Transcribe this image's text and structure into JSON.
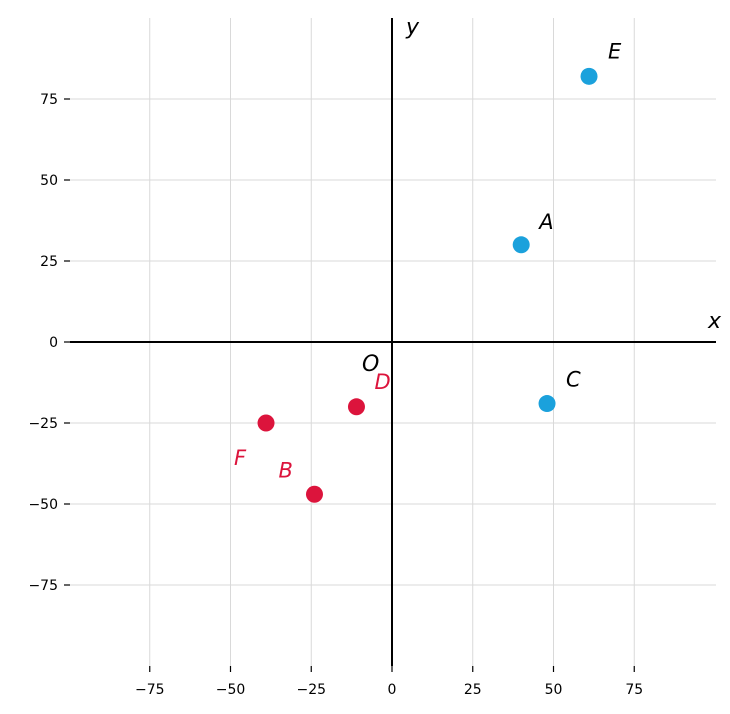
{
  "chart_data": {
    "type": "scatter",
    "title": "",
    "xlabel": "x",
    "ylabel": "y",
    "origin_label": "O",
    "xlim": [
      -100,
      100
    ],
    "ylim": [
      -100,
      100
    ],
    "x_ticks": [
      -75,
      -50,
      -25,
      0,
      25,
      50,
      75
    ],
    "y_ticks": [
      75,
      50,
      25,
      0,
      -25,
      -50,
      -75
    ],
    "grid": true,
    "series": [
      {
        "color": "#1ba1dc",
        "points": [
          {
            "label": "A",
            "x": 40,
            "y": 30
          },
          {
            "label": "C",
            "x": 48,
            "y": -19
          },
          {
            "label": "E",
            "x": 61,
            "y": 82
          }
        ]
      },
      {
        "color": "#dc143c",
        "points": [
          {
            "label": "B",
            "x": -24,
            "y": -47
          },
          {
            "label": "D",
            "x": -11,
            "y": -20
          },
          {
            "label": "F",
            "x": -39,
            "y": -25
          }
        ]
      }
    ]
  }
}
